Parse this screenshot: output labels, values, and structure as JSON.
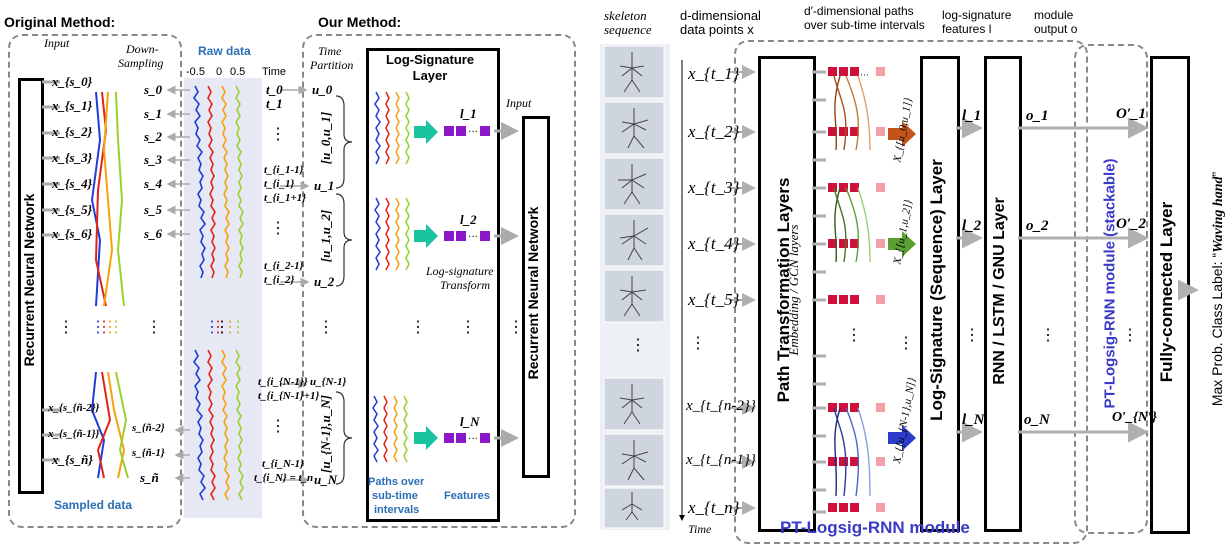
{
  "left": {
    "original_method": "Original Method:",
    "our_method": "Our Method:",
    "input": "Input",
    "down_sampling_1": "Down-",
    "down_sampling_2": "Sampling",
    "raw_data": "Raw data",
    "ticks": [
      "-0.5",
      "0",
      "0.5"
    ],
    "time": "Time",
    "time_partition_1": "Time",
    "time_partition_2": "Partition",
    "rnn_left": "Recurrent Neural Network",
    "rnn_right": "Recurrent Neural Network",
    "logsig_layer_1": "Log-Signature",
    "logsig_layer_2": "Layer",
    "logsig_transform_1": "Log-signature",
    "logsig_transform_2": "Transform",
    "sampled_data": "Sampled data",
    "paths_over_1": "Paths over",
    "paths_over_2": "sub-time",
    "paths_over_3": "intervals",
    "features": "Features",
    "input_right": "Input",
    "x_inputs": [
      "x_{s_0}",
      "x_{s_1}",
      "x_{s_2}",
      "x_{s_3}",
      "x_{s_4}",
      "x_{s_5}",
      "x_{s_6}",
      "x_{s_{ñ-2}}",
      "x_{s_{ñ-1}}",
      "x_{s_ñ}"
    ],
    "s_labels": [
      "s_0",
      "s_1",
      "s_2",
      "s_3",
      "s_4",
      "s_5",
      "s_6",
      "s_{ñ-2}",
      "s_{ñ-1}",
      "s_ñ"
    ],
    "t_labels": [
      "t_0",
      "t_1",
      "t_{i_1-1}",
      "t_{i_1}",
      "t_{i_1+1}",
      "t_{i_2-1}",
      "t_{i_2}",
      "t_{i_{N-1}}",
      "t_{i_{N-1}+1}",
      "t_{i_N-1}",
      "t_{i_N} = t_n"
    ],
    "u_labels": [
      "u_0",
      "u_1",
      "u_2",
      "u_{N-1}",
      "u_N"
    ],
    "intervals": [
      "[u_0,u_1]",
      "[u_1,u_2]",
      "[u_{N-1},u_N]"
    ],
    "l_labels": [
      "l_1",
      "l_2",
      "l_N"
    ]
  },
  "right": {
    "skeleton_sequence_1": "skeleton",
    "skeleton_sequence_2": "sequence",
    "d_dim_1": "d-dimensional",
    "d_dim_2": "data points x",
    "dprime_1": "d′-dimensional paths",
    "dprime_2": "over sub-time intervals",
    "logsig_feat_1": "log-signature",
    "logsig_feat_2": "features l",
    "module_output_1": "module",
    "module_output_2": "output o",
    "x_labels": [
      "x_{t_1}",
      "x_{t_2}",
      "x_{t_3}",
      "x_{t_4}",
      "x_{t_5}",
      "x_{t_{n-2}}",
      "x_{t_{n-1}}",
      "x_{t_n}"
    ],
    "time": "Time",
    "path_transform": "Path Transformation Layers",
    "path_transform_sub": "Embedding / GCN layers",
    "logsig_seq": "Log-Signature (Sequence) Layer",
    "rnn_layer": "RNN / LSTM / GNU Layer",
    "interval_labels": [
      "X_{[u_0,u_1]}",
      "X_{[u_1,u_2]}",
      "X_{[u_{N-1},u_N]}"
    ],
    "l_labels": [
      "l_1",
      "l_2",
      "l_N"
    ],
    "o_labels": [
      "o_1",
      "o_2",
      "o_N"
    ],
    "o_prime_labels": [
      "O′_1",
      "O′_2",
      "O′_{N′}"
    ],
    "module_name": "PT-Logsig-RNN module",
    "stackable": "PT-Logsig-RNN module (stackable)",
    "fc_layer": "Fully-connected Layer",
    "class_label_prefix": "Max Prob. Class Label: “",
    "class_label_value": "Waving hand",
    "class_label_suffix": "”"
  },
  "colors": {
    "raw_blue": "#1f3cd8",
    "raw_red": "#e0241b",
    "raw_orange": "#f5a20c",
    "raw_green": "#9ad12e",
    "arrow_teal": "#19c3a0",
    "feature_purple": "#8a18c8",
    "module_blue": "#3a3ac8",
    "label_blue": "#2b6fb4"
  }
}
